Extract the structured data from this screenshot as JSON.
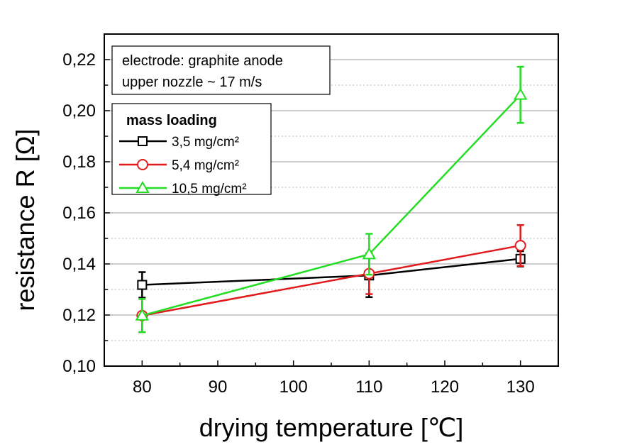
{
  "chart_data": {
    "type": "line",
    "xlabel": "drying temperature [℃]",
    "ylabel": "resistance R [Ω]",
    "xlim": [
      75,
      135
    ],
    "ylim": [
      0.1,
      0.23
    ],
    "xticks": [
      80,
      90,
      100,
      110,
      120,
      130
    ],
    "xtick_labels": [
      "80",
      "90",
      "100",
      "110",
      "120",
      "130"
    ],
    "yticks": [
      0.1,
      0.12,
      0.14,
      0.16,
      0.18,
      0.2,
      0.22
    ],
    "ytick_labels": [
      "0,10",
      "0,12",
      "0,14",
      "0,16",
      "0,18",
      "0,20",
      "0,22"
    ],
    "grid": true,
    "annotation": [
      "electrode: graphite anode",
      "upper nozzle ~ 17 m/s"
    ],
    "legend_title": "mass loading",
    "legend_position": "top-left",
    "series": [
      {
        "name": "3,5 mg/cm²",
        "color": "#000000",
        "marker": "square",
        "x": [
          80,
          110,
          130
        ],
        "y": [
          0.1318,
          0.1355,
          0.142
        ],
        "err": [
          0.005,
          0.0085,
          0.003
        ]
      },
      {
        "name": "5,4 mg/cm²",
        "color": "#e31a1c",
        "marker": "circle",
        "x": [
          80,
          110,
          130
        ],
        "y": [
          0.1198,
          0.1362,
          0.1472
        ],
        "err": [
          0.0065,
          0.008,
          0.008
        ]
      },
      {
        "name": "10,5 mg/cm²",
        "color": "#22dd22",
        "marker": "triangle",
        "x": [
          80,
          110,
          130
        ],
        "y": [
          0.1198,
          0.1438,
          0.2062
        ],
        "err": [
          0.0065,
          0.008,
          0.011
        ]
      }
    ]
  }
}
